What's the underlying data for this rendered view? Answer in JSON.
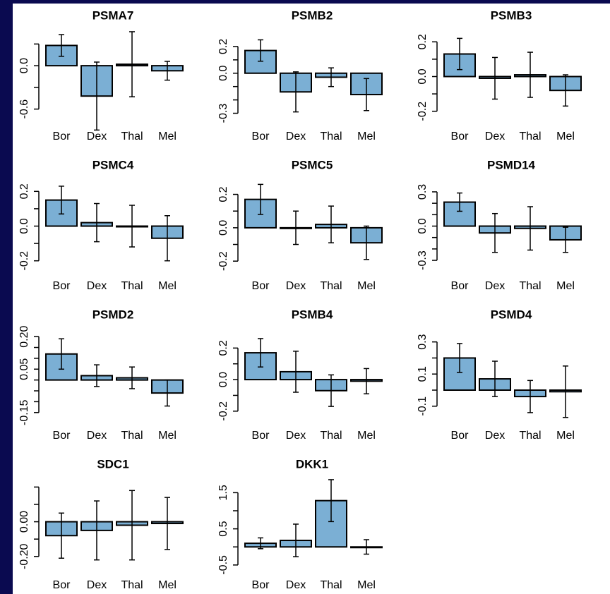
{
  "chart_data": [
    {
      "type": "bar",
      "title": "PSMA7",
      "categories": [
        "Bor",
        "Dex",
        "Thal",
        "Mel"
      ],
      "values": [
        0.28,
        -0.42,
        0.02,
        -0.07
      ],
      "errors": [
        0.15,
        0.47,
        0.45,
        0.13
      ],
      "color": "#7bafd4",
      "ylim": [
        -0.75,
        0.45
      ],
      "yticks": [
        {
          "value": -0.6,
          "label": "-0.6"
        },
        {
          "value": -0.3,
          "label": null
        },
        {
          "value": 0,
          "label": "0.0"
        },
        {
          "value": 0.3,
          "label": null
        }
      ]
    },
    {
      "type": "bar",
      "title": "PSMB2",
      "categories": [
        "Bor",
        "Dex",
        "Thal",
        "Mel"
      ],
      "values": [
        0.17,
        -0.14,
        -0.03,
        -0.16
      ],
      "errors": [
        0.08,
        0.15,
        0.07,
        0.12
      ],
      "color": "#7bafd4",
      "ylim": [
        -0.35,
        0.3
      ],
      "yticks": [
        -0.3,
        {
          "value": -0.2,
          "label": null
        },
        {
          "value": -0.1,
          "label": null
        },
        {
          "value": 0,
          "label": "0.0"
        },
        {
          "value": 0.1,
          "label": null
        },
        0.2
      ]
    },
    {
      "type": "bar",
      "title": "PSMB3",
      "categories": [
        "Bor",
        "Dex",
        "Thal",
        "Mel"
      ],
      "values": [
        0.13,
        -0.01,
        0.01,
        -0.08
      ],
      "errors": [
        0.09,
        0.12,
        0.13,
        0.09
      ],
      "color": "#7bafd4",
      "ylim": [
        -0.25,
        0.25
      ],
      "yticks": [
        -0.2,
        {
          "value": -0.1,
          "label": null
        },
        {
          "value": 0,
          "label": "0.0"
        },
        {
          "value": 0.1,
          "label": null
        },
        0.2
      ]
    },
    {
      "type": "bar",
      "title": "PSMC4",
      "categories": [
        "Bor",
        "Dex",
        "Thal",
        "Mel"
      ],
      "values": [
        0.15,
        0.02,
        0.0,
        -0.07
      ],
      "errors": [
        0.08,
        0.11,
        0.12,
        0.13
      ],
      "color": "#7bafd4",
      "ylim": [
        -0.25,
        0.25
      ],
      "yticks": [
        -0.2,
        {
          "value": -0.1,
          "label": null
        },
        {
          "value": 0,
          "label": "0.0"
        },
        {
          "value": 0.1,
          "label": null
        },
        0.2
      ]
    },
    {
      "type": "bar",
      "title": "PSMC5",
      "categories": [
        "Bor",
        "Dex",
        "Thal",
        "Mel"
      ],
      "values": [
        0.17,
        0.0,
        0.02,
        -0.09
      ],
      "errors": [
        0.09,
        0.1,
        0.11,
        0.1
      ],
      "color": "#7bafd4",
      "ylim": [
        -0.25,
        0.27
      ],
      "yticks": [
        -0.2,
        {
          "value": -0.1,
          "label": null
        },
        {
          "value": 0,
          "label": "0.0"
        },
        {
          "value": 0.1,
          "label": null
        },
        0.2
      ]
    },
    {
      "type": "bar",
      "title": "PSMD14",
      "categories": [
        "Bor",
        "Dex",
        "Thal",
        "Mel"
      ],
      "values": [
        0.21,
        -0.06,
        -0.02,
        -0.12
      ],
      "errors": [
        0.08,
        0.17,
        0.19,
        0.11
      ],
      "color": "#7bafd4",
      "ylim": [
        -0.38,
        0.38
      ],
      "yticks": [
        -0.3,
        {
          "value": -0.2,
          "label": null
        },
        {
          "value": -0.1,
          "label": null
        },
        {
          "value": 0,
          "label": "0.0"
        },
        {
          "value": 0.1,
          "label": null
        },
        {
          "value": 0.2,
          "label": null
        },
        0.3
      ]
    },
    {
      "type": "bar",
      "title": "PSMD2",
      "categories": [
        "Bor",
        "Dex",
        "Thal",
        "Mel"
      ],
      "values": [
        0.12,
        0.02,
        0.01,
        -0.06
      ],
      "errors": [
        0.07,
        0.05,
        0.05,
        0.06
      ],
      "color": "#7bafd4",
      "ylim": [
        -0.18,
        0.22
      ],
      "yticks": [
        -0.15,
        {
          "value": -0.1,
          "label": null
        },
        {
          "value": -0.05,
          "label": null
        },
        {
          "value": 0,
          "label": null
        },
        0.05,
        {
          "value": 0.1,
          "label": null
        },
        {
          "value": 0.15,
          "label": null
        },
        {
          "value": 0.2,
          "label": "0.20"
        }
      ]
    },
    {
      "type": "bar",
      "title": "PSMB4",
      "categories": [
        "Bor",
        "Dex",
        "Thal",
        "Mel"
      ],
      "values": [
        0.17,
        0.05,
        -0.07,
        -0.01
      ],
      "errors": [
        0.09,
        0.13,
        0.1,
        0.08
      ],
      "color": "#7bafd4",
      "ylim": [
        -0.25,
        0.3
      ],
      "yticks": [
        -0.2,
        {
          "value": -0.1,
          "label": null
        },
        {
          "value": 0,
          "label": "0.0"
        },
        {
          "value": 0.1,
          "label": null
        },
        0.2
      ]
    },
    {
      "type": "bar",
      "title": "PSMD4",
      "categories": [
        "Bor",
        "Dex",
        "Thal",
        "Mel"
      ],
      "values": [
        0.2,
        0.07,
        -0.04,
        -0.01
      ],
      "errors": [
        0.09,
        0.11,
        0.1,
        0.16
      ],
      "color": "#7bafd4",
      "ylim": [
        -0.18,
        0.36
      ],
      "yticks": [
        -0.1,
        {
          "value": 0,
          "label": null
        },
        0.1,
        {
          "value": 0.2,
          "label": null
        },
        0.3
      ]
    },
    {
      "type": "bar",
      "title": "SDC1",
      "categories": [
        "Bor",
        "Dex",
        "Thal",
        "Mel"
      ],
      "values": [
        -0.08,
        -0.05,
        -0.02,
        -0.01
      ],
      "errors": [
        0.13,
        0.17,
        0.2,
        0.15
      ],
      "color": "#7bafd4",
      "ylim": [
        -0.27,
        0.23
      ],
      "yticks": [
        {
          "value": -0.2,
          "label": "-0.20"
        },
        {
          "value": -0.1,
          "label": null
        },
        {
          "value": 0,
          "label": "0.00"
        },
        {
          "value": 0.1,
          "label": null
        },
        {
          "value": 0.2,
          "label": null
        }
      ]
    },
    {
      "type": "bar",
      "title": "DKK1",
      "categories": [
        "Bor",
        "Dex",
        "Thal",
        "Mel"
      ],
      "values": [
        0.1,
        0.18,
        1.28,
        0.0
      ],
      "errors": [
        0.15,
        0.45,
        0.58,
        0.2
      ],
      "color": "#7bafd4",
      "ylim": [
        -0.6,
        1.8
      ],
      "yticks": [
        -0.5,
        {
          "value": 0,
          "label": null
        },
        0.5,
        {
          "value": 1,
          "label": null
        },
        1.5
      ]
    }
  ]
}
